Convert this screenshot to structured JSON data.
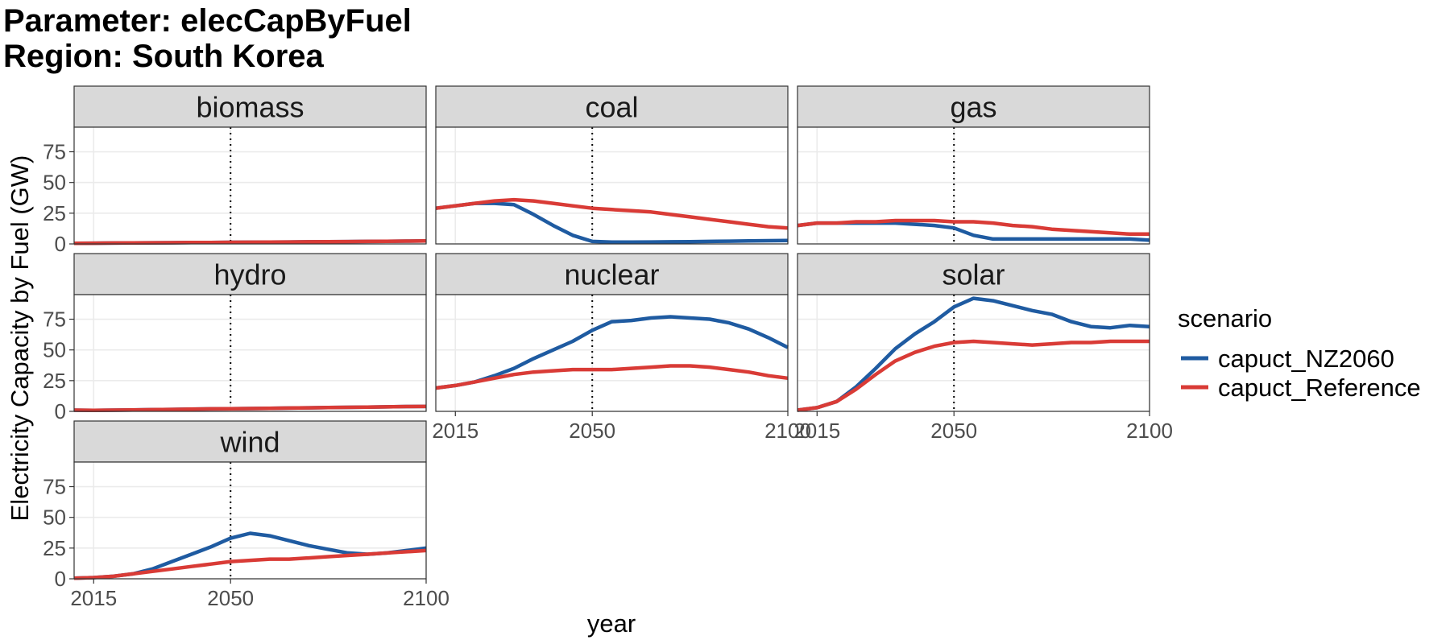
{
  "title_lines": [
    "Parameter: elecCapByFuel",
    "Region: South Korea"
  ],
  "chart_data": {
    "type": "line",
    "xlabel": "year",
    "ylabel": "Electricity Capacity by Fuel (GW)",
    "xlim": [
      2010,
      2100
    ],
    "ylim": [
      0,
      95
    ],
    "x_ticks": [
      2015,
      2050,
      2100
    ],
    "y_ticks": [
      0,
      25,
      50,
      75
    ],
    "reference_line_x": 2050,
    "grid": true,
    "legend": {
      "title": "scenario",
      "position": "right",
      "entries": [
        {
          "name": "capuct_NZ2060",
          "color": "#1f5ba1"
        },
        {
          "name": "capuct_Reference",
          "color": "#d93b36"
        }
      ]
    },
    "x": [
      2010,
      2015,
      2020,
      2025,
      2030,
      2035,
      2040,
      2045,
      2050,
      2055,
      2060,
      2065,
      2070,
      2075,
      2080,
      2085,
      2090,
      2095,
      2100
    ],
    "panels": [
      {
        "name": "biomass",
        "series": [
          {
            "name": "capuct_NZ2060",
            "values": [
              0.5,
              0.6,
              0.7,
              0.8,
              0.9,
              1.0,
              1.1,
              1.2,
              1.3,
              1.4,
              1.5,
              1.6,
              1.7,
              1.8,
              1.9,
              2.0,
              2.1,
              2.3,
              2.5
            ]
          },
          {
            "name": "capuct_Reference",
            "values": [
              0.5,
              0.6,
              0.7,
              0.8,
              0.9,
              1.0,
              1.1,
              1.2,
              1.3,
              1.4,
              1.5,
              1.6,
              1.7,
              1.8,
              1.9,
              2.0,
              2.1,
              2.3,
              2.5
            ]
          }
        ]
      },
      {
        "name": "coal",
        "series": [
          {
            "name": "capuct_NZ2060",
            "values": [
              29,
              31,
              33,
              33,
              32,
              24,
              15,
              7,
              2,
              1.5,
              1.5,
              1.6,
              1.7,
              1.8,
              2,
              2.2,
              2.4,
              2.6,
              2.8
            ]
          },
          {
            "name": "capuct_Reference",
            "values": [
              29,
              31,
              33,
              35,
              36,
              35,
              33,
              31,
              29,
              28,
              27,
              26,
              24,
              22,
              20,
              18,
              16,
              14,
              13
            ]
          }
        ]
      },
      {
        "name": "gas",
        "series": [
          {
            "name": "capuct_NZ2060",
            "values": [
              15,
              17,
              17,
              17,
              17,
              17,
              16,
              15,
              13,
              7,
              4,
              4,
              4,
              4,
              4,
              4,
              4,
              4,
              3
            ]
          },
          {
            "name": "capuct_Reference",
            "values": [
              15,
              17,
              17,
              18,
              18,
              19,
              19,
              19,
              18,
              18,
              17,
              15,
              14,
              12,
              11,
              10,
              9,
              8,
              8
            ]
          }
        ]
      },
      {
        "name": "hydro",
        "series": [
          {
            "name": "capuct_NZ2060",
            "values": [
              1,
              0.8,
              1,
              1.2,
              1.4,
              1.6,
              1.8,
              2,
              2.1,
              2.3,
              2.5,
              2.7,
              2.9,
              3.1,
              3.3,
              3.5,
              3.7,
              3.9,
              4
            ]
          },
          {
            "name": "capuct_Reference",
            "values": [
              1,
              0.8,
              1,
              1.2,
              1.4,
              1.6,
              1.8,
              2,
              2.1,
              2.3,
              2.5,
              2.7,
              2.9,
              3.1,
              3.3,
              3.5,
              3.7,
              3.9,
              4
            ]
          }
        ]
      },
      {
        "name": "nuclear",
        "series": [
          {
            "name": "capuct_NZ2060",
            "values": [
              19,
              21,
              24,
              29,
              35,
              43,
              50,
              57,
              66,
              73,
              74,
              76,
              77,
              76,
              75,
              72,
              67,
              60,
              52
            ]
          },
          {
            "name": "capuct_Reference",
            "values": [
              19,
              21,
              24,
              27,
              30,
              32,
              33,
              34,
              34,
              34,
              35,
              36,
              37,
              37,
              36,
              34,
              32,
              29,
              27
            ]
          }
        ]
      },
      {
        "name": "solar",
        "series": [
          {
            "name": "capuct_NZ2060",
            "values": [
              1,
              3,
              8,
              20,
              35,
              51,
              63,
              73,
              85,
              92,
              90,
              86,
              82,
              79,
              73,
              69,
              68,
              70,
              69
            ]
          },
          {
            "name": "capuct_Reference",
            "values": [
              1,
              3,
              8,
              18,
              30,
              41,
              48,
              53,
              56,
              57,
              56,
              55,
              54,
              55,
              56,
              56,
              57,
              57,
              57
            ]
          }
        ]
      },
      {
        "name": "wind",
        "series": [
          {
            "name": "capuct_NZ2060",
            "values": [
              0.5,
              1,
              2,
              4,
              8,
              14,
              20,
              26,
              33,
              37,
              35,
              31,
              27,
              24,
              21,
              20,
              21,
              23,
              25
            ]
          },
          {
            "name": "capuct_Reference",
            "values": [
              0.5,
              1,
              2,
              4,
              6,
              8,
              10,
              12,
              14,
              15,
              16,
              16,
              17,
              18,
              19,
              20,
              21,
              22,
              23
            ]
          }
        ]
      }
    ]
  }
}
